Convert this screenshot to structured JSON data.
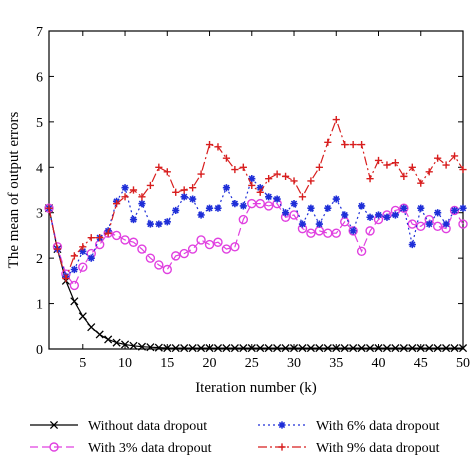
{
  "chart_data": {
    "type": "line",
    "title": "",
    "xlabel": "Iteration number (k)",
    "ylabel": "The mean of output errors",
    "xlim": [
      1,
      50
    ],
    "ylim": [
      0,
      7
    ],
    "x_ticks": [
      5,
      10,
      15,
      20,
      25,
      30,
      35,
      40,
      45,
      50
    ],
    "y_ticks": [
      0,
      1,
      2,
      3,
      4,
      5,
      6,
      7
    ],
    "grid": false,
    "legend_position": "bottom",
    "x": [
      1,
      2,
      3,
      4,
      5,
      6,
      7,
      8,
      9,
      10,
      11,
      12,
      13,
      14,
      15,
      16,
      17,
      18,
      19,
      20,
      21,
      22,
      23,
      24,
      25,
      26,
      27,
      28,
      29,
      30,
      31,
      32,
      33,
      34,
      35,
      36,
      37,
      38,
      39,
      40,
      41,
      42,
      43,
      44,
      45,
      46,
      47,
      48,
      49,
      50
    ],
    "series": [
      {
        "name": "Without data dropout",
        "color": "#000000",
        "marker": "x",
        "dash": "",
        "values": [
          3.1,
          2.2,
          1.5,
          1.05,
          0.72,
          0.48,
          0.32,
          0.21,
          0.14,
          0.1,
          0.07,
          0.05,
          0.04,
          0.03,
          0.02,
          0.02,
          0.02,
          0.02,
          0.02,
          0.02,
          0.02,
          0.02,
          0.02,
          0.02,
          0.02,
          0.02,
          0.02,
          0.02,
          0.02,
          0.02,
          0.02,
          0.02,
          0.02,
          0.02,
          0.02,
          0.02,
          0.02,
          0.02,
          0.02,
          0.02,
          0.02,
          0.02,
          0.02,
          0.02,
          0.02,
          0.02,
          0.02,
          0.02,
          0.02,
          0.02
        ]
      },
      {
        "name": "With 3% data dropout",
        "color": "#e040e0",
        "marker": "circle",
        "dash": "8,4",
        "values": [
          3.1,
          2.25,
          1.65,
          1.4,
          1.8,
          2.1,
          2.3,
          2.55,
          2.5,
          2.4,
          2.35,
          2.2,
          2.0,
          1.85,
          1.75,
          2.05,
          2.1,
          2.2,
          2.4,
          2.3,
          2.35,
          2.2,
          2.25,
          2.85,
          3.2,
          3.2,
          3.15,
          3.2,
          2.9,
          2.95,
          2.65,
          2.55,
          2.6,
          2.55,
          2.55,
          2.8,
          2.6,
          2.15,
          2.6,
          2.85,
          2.95,
          3.05,
          3.1,
          2.75,
          2.7,
          2.85,
          2.7,
          2.65,
          3.05,
          2.75
        ]
      },
      {
        "name": "With 6% data dropout",
        "color": "#1e2ed8",
        "marker": "star",
        "dash": "2,3",
        "values": [
          3.1,
          2.2,
          1.6,
          1.75,
          2.15,
          2.0,
          2.45,
          2.6,
          3.25,
          3.55,
          2.85,
          3.2,
          2.75,
          2.75,
          2.8,
          3.05,
          3.35,
          3.3,
          2.95,
          3.1,
          3.1,
          3.55,
          3.2,
          3.15,
          3.75,
          3.55,
          3.35,
          3.3,
          3.0,
          3.2,
          2.75,
          3.1,
          2.75,
          3.1,
          3.3,
          2.95,
          2.6,
          3.15,
          2.9,
          2.95,
          2.9,
          2.95,
          3.1,
          2.3,
          3.1,
          2.75,
          3.0,
          2.75,
          3.05,
          3.1
        ]
      },
      {
        "name": "With 9% data dropout",
        "color": "#d81e1e",
        "marker": "plus",
        "dash": "9,3,2,3",
        "values": [
          3.1,
          2.2,
          1.55,
          2.05,
          2.25,
          2.45,
          2.45,
          2.55,
          3.2,
          3.35,
          3.5,
          3.35,
          3.6,
          4.0,
          3.9,
          3.45,
          3.5,
          3.55,
          3.85,
          4.5,
          4.45,
          4.2,
          3.95,
          4.0,
          3.6,
          3.45,
          3.75,
          3.85,
          3.8,
          3.7,
          3.35,
          3.7,
          4.0,
          4.55,
          5.05,
          4.5,
          4.5,
          4.5,
          3.75,
          4.15,
          4.05,
          4.1,
          3.8,
          4.0,
          3.65,
          3.9,
          4.2,
          4.05,
          4.25,
          3.95
        ]
      }
    ]
  }
}
